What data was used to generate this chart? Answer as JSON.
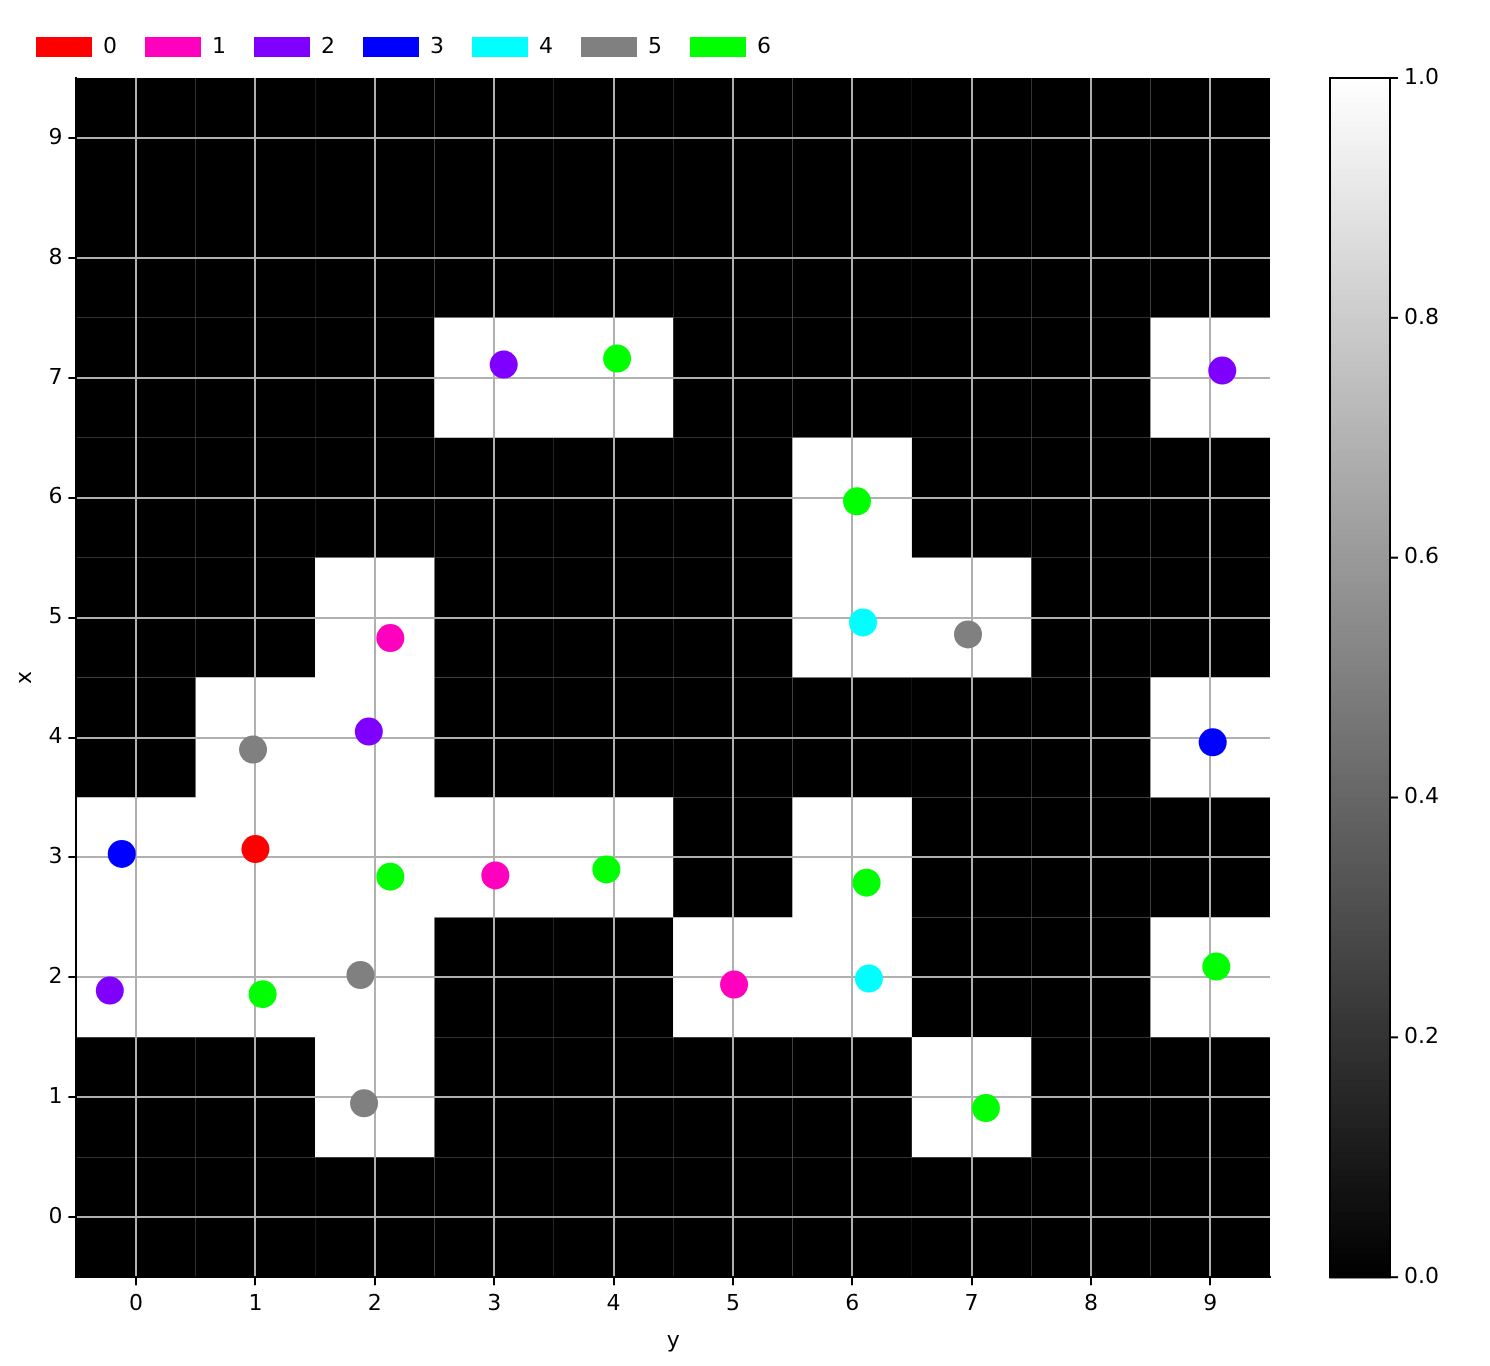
{
  "chart_data": {
    "type": "heatmap",
    "xlabel": "y",
    "ylabel": "x",
    "xlim": [
      -0.5,
      9.5
    ],
    "ylim": [
      -0.5,
      9.5
    ],
    "xticks": [
      0,
      1,
      2,
      3,
      4,
      5,
      6,
      7,
      8,
      9
    ],
    "yticks": [
      0,
      1,
      2,
      3,
      4,
      5,
      6,
      7,
      8,
      9
    ],
    "cells": [
      [
        0,
        0,
        0,
        0,
        0,
        0,
        0,
        0,
        0,
        0
      ],
      [
        0,
        0,
        0,
        0,
        0,
        0,
        0,
        0,
        0,
        0
      ],
      [
        0,
        0,
        0,
        1,
        1,
        0,
        0,
        0,
        0,
        1
      ],
      [
        0,
        0,
        0,
        0,
        0,
        0,
        1,
        0,
        0,
        0
      ],
      [
        0,
        0,
        1,
        0,
        0,
        0,
        1,
        1,
        0,
        0
      ],
      [
        0,
        1,
        1,
        0,
        0,
        0,
        0,
        0,
        0,
        1
      ],
      [
        1,
        1,
        1,
        1,
        1,
        0,
        1,
        0,
        0,
        0
      ],
      [
        1,
        1,
        1,
        0,
        0,
        1,
        1,
        0,
        0,
        1
      ],
      [
        0,
        0,
        1,
        0,
        0,
        0,
        0,
        1,
        0,
        0
      ],
      [
        0,
        0,
        0,
        0,
        0,
        0,
        0,
        0,
        0,
        0
      ]
    ],
    "clim": [
      0,
      1
    ],
    "cticks": [
      {
        "value": 0,
        "label": "0.0"
      },
      {
        "value": 0.2,
        "label": "0.2"
      },
      {
        "value": 0.4,
        "label": "0.4"
      },
      {
        "value": 0.6,
        "label": "0.6"
      },
      {
        "value": 0.8,
        "label": "0.8"
      },
      {
        "value": 1,
        "label": "1.0"
      }
    ],
    "grid": true,
    "legend": "top",
    "marker": "circle",
    "series": [
      {
        "type": "scatter",
        "name": "0",
        "color": "#ff0000",
        "x": [
          1.0
        ],
        "values": [
          3.07
        ]
      },
      {
        "type": "scatter",
        "name": "1",
        "color": "#ff00bf",
        "x": [
          2.13,
          3.01,
          5.01
        ],
        "values": [
          4.83,
          2.85,
          1.94
        ]
      },
      {
        "type": "scatter",
        "name": "2",
        "color": "#8000ff",
        "x": [
          3.08,
          9.1,
          1.95,
          -0.22
        ],
        "values": [
          7.11,
          7.06,
          4.05,
          1.89
        ]
      },
      {
        "type": "scatter",
        "name": "3",
        "color": "#0000ff",
        "x": [
          -0.12,
          9.02
        ],
        "values": [
          3.03,
          3.96
        ]
      },
      {
        "type": "scatter",
        "name": "4",
        "color": "#00ffff",
        "x": [
          6.09,
          6.14
        ],
        "values": [
          4.96,
          1.99
        ]
      },
      {
        "type": "scatter",
        "name": "5",
        "color": "#808080",
        "x": [
          0.98,
          6.97,
          1.88,
          1.91
        ],
        "values": [
          3.9,
          4.86,
          2.02,
          0.95
        ]
      },
      {
        "type": "scatter",
        "name": "6",
        "color": "#00ff00",
        "x": [
          4.03,
          6.04,
          2.13,
          3.94,
          6.12,
          1.06,
          7.12,
          9.05
        ],
        "values": [
          7.16,
          5.97,
          2.84,
          2.9,
          2.79,
          1.86,
          0.91,
          2.09
        ]
      }
    ]
  }
}
